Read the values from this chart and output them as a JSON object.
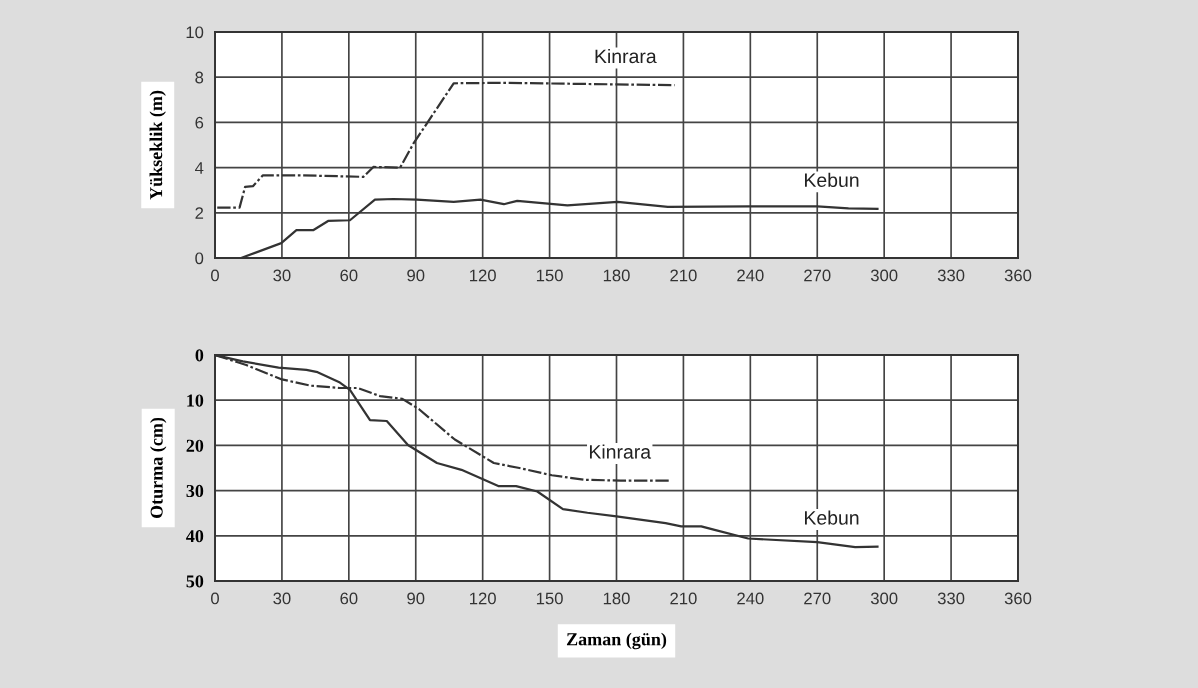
{
  "chart_data": [
    {
      "type": "line",
      "ylabel": "Yükseklik (m)",
      "xlim": [
        0,
        360
      ],
      "xticks": [
        0,
        30,
        60,
        90,
        120,
        150,
        180,
        210,
        240,
        270,
        300,
        330,
        360
      ],
      "ylim": [
        0,
        10
      ],
      "yticks": [
        0,
        2,
        4,
        6,
        8,
        10
      ],
      "grid": true,
      "legend": false,
      "marker": "none",
      "series": [
        {
          "name": "Kinrara",
          "color": "#333333",
          "line_style": "dashed",
          "x": [
            1,
            11,
            13.5,
            17,
            21.5,
            38,
            66.5,
            71,
            83,
            89,
            107,
            128,
            206
          ],
          "values": [
            2.23,
            2.23,
            3.15,
            3.18,
            3.66,
            3.66,
            3.59,
            4.03,
            4.0,
            5.07,
            7.73,
            7.75,
            7.65
          ]
        },
        {
          "name": "Kebun",
          "color": "#333333",
          "line_style": "solid",
          "x": [
            0,
            11.7,
            29.7,
            36.5,
            44,
            50.7,
            60.5,
            71.7,
            80,
            90.5,
            107,
            119,
            129.5,
            135.5,
            158,
            180.5,
            203,
            240,
            270,
            284,
            297
          ],
          "values": [
            0,
            0,
            0.66,
            1.23,
            1.23,
            1.64,
            1.67,
            2.58,
            2.61,
            2.58,
            2.48,
            2.58,
            2.38,
            2.53,
            2.33,
            2.48,
            2.26,
            2.28,
            2.28,
            2.2,
            2.17
          ]
        }
      ]
    },
    {
      "type": "line",
      "ylabel": "Oturma (cm)",
      "xlabel": "Zaman (gün)",
      "xlim": [
        0,
        360
      ],
      "xticks": [
        0,
        30,
        60,
        90,
        120,
        150,
        180,
        210,
        240,
        270,
        300,
        330,
        360
      ],
      "ylim": [
        50,
        0
      ],
      "yticks": [
        0,
        10,
        20,
        30,
        40,
        50
      ],
      "grid": true,
      "legend": false,
      "marker": "none",
      "series": [
        {
          "name": "Kinrara",
          "color": "#333333",
          "line_style": "dashed",
          "x": [
            0,
            14,
            30,
            43,
            56,
            64,
            74,
            84,
            91.5,
            107.5,
            125,
            136.5,
            151,
            165.5,
            182,
            203.5
          ],
          "values": [
            0,
            2.2,
            5.4,
            6.8,
            7.3,
            7.3,
            9.1,
            9.7,
            12,
            18.7,
            23.9,
            25,
            26.6,
            27.6,
            27.8,
            27.8
          ]
        },
        {
          "name": "Kebun",
          "color": "#333333",
          "line_style": "solid",
          "x": [
            0,
            12.5,
            28.5,
            41,
            46,
            56,
            60.5,
            69.5,
            77,
            86.5,
            99.5,
            110.5,
            127,
            135,
            144.5,
            156,
            167,
            180,
            202,
            209,
            218,
            224,
            239,
            270,
            287,
            297
          ],
          "values": [
            0,
            1.4,
            2.8,
            3.3,
            3.8,
            6.1,
            7.7,
            14.4,
            14.6,
            19.9,
            23.9,
            25.4,
            29,
            29,
            30.2,
            34.1,
            34.9,
            35.7,
            37.2,
            37.9,
            37.9,
            38.7,
            40.6,
            41.4,
            42.5,
            42.4
          ]
        }
      ]
    }
  ]
}
